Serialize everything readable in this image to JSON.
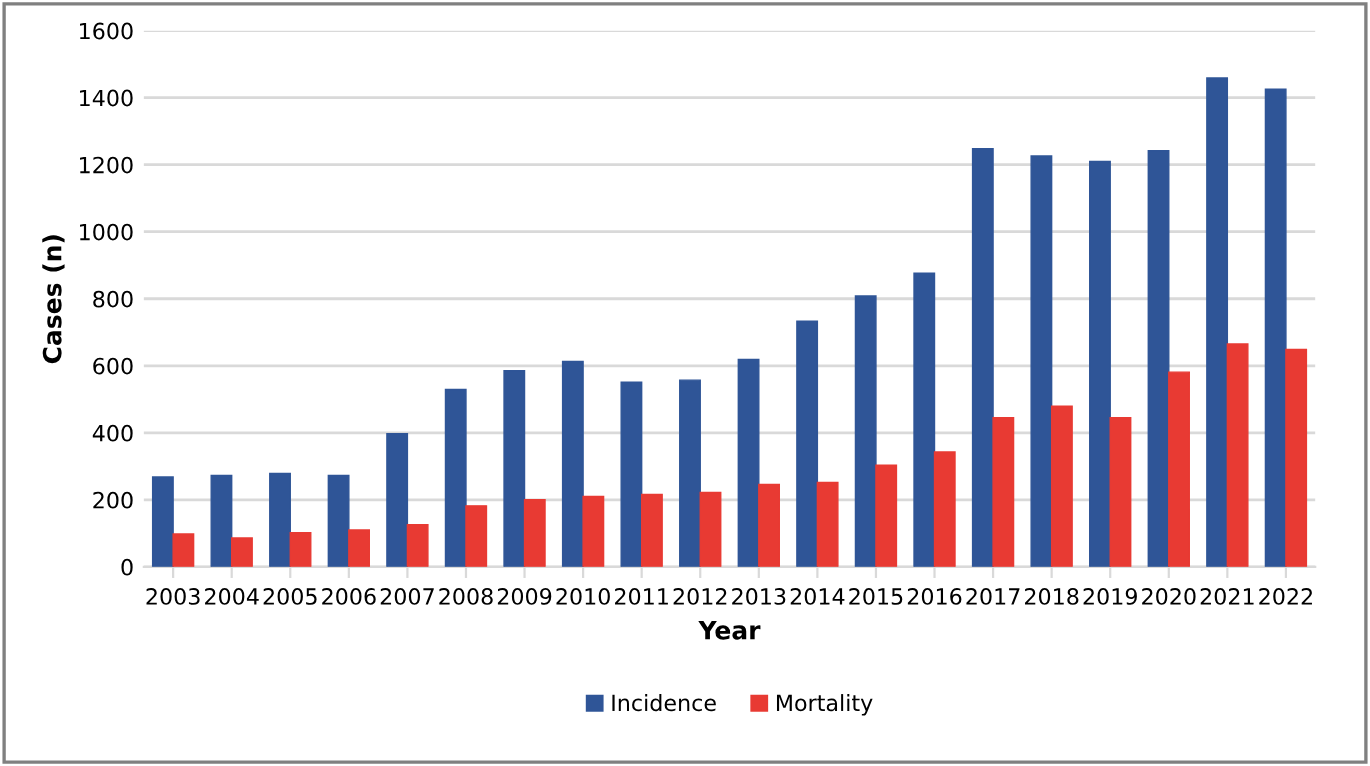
{
  "chart_data": {
    "type": "bar",
    "xlabel": "Year",
    "ylabel": "Cases (n)",
    "categories": [
      "2003",
      "2004",
      "2005",
      "2006",
      "2007",
      "2008",
      "2009",
      "2010",
      "2011",
      "2012",
      "2013",
      "2014",
      "2015",
      "2016",
      "2017",
      "2018",
      "2019",
      "2020",
      "2021",
      "2022"
    ],
    "series": [
      {
        "name": "Incidence",
        "color": "#2f5597",
        "values": [
          268,
          273,
          279,
          273,
          397,
          529,
          585,
          613,
          551,
          557,
          619,
          733,
          808,
          876,
          1248,
          1226,
          1210,
          1242,
          1459,
          1425
        ]
      },
      {
        "name": "Mortality",
        "color": "#e83a33",
        "values": [
          98,
          86,
          102,
          110,
          126,
          182,
          200,
          210,
          216,
          222,
          246,
          252,
          303,
          343,
          445,
          479,
          445,
          581,
          665,
          649
        ]
      }
    ],
    "ylim": [
      0,
      1600
    ],
    "yticks": [
      0,
      200,
      400,
      600,
      800,
      1000,
      1200,
      1400,
      1600
    ],
    "grid": "y",
    "legend": "bottom"
  }
}
